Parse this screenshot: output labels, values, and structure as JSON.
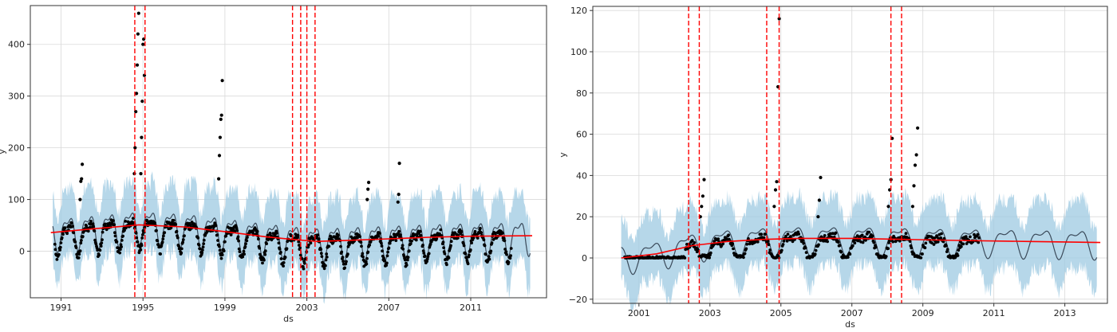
{
  "chart_data": [
    {
      "type": "scatter",
      "title": "",
      "xlabel": "ds",
      "ylabel": "y",
      "xlim": [
        1989.5,
        2014.7
      ],
      "ylim": [
        -90,
        475
      ],
      "xticks": [
        1991,
        1995,
        1999,
        2003,
        2007,
        2011
      ],
      "xtick_labels": [
        "1991",
        "1995",
        "1999",
        "2003",
        "2007",
        "2011"
      ],
      "yticks": [
        0,
        100,
        200,
        300,
        400
      ],
      "ytick_labels": [
        "0",
        "100",
        "200",
        "300",
        "400"
      ],
      "grid": true,
      "data_range": [
        1990.7,
        2013.0
      ],
      "forecast_end": 2013.9,
      "trend": [
        [
          1990.5,
          36
        ],
        [
          1992.5,
          43
        ],
        [
          1994.8,
          51
        ],
        [
          1997.0,
          47
        ],
        [
          1999.0,
          38
        ],
        [
          2001.0,
          28
        ],
        [
          2002.5,
          22
        ],
        [
          2003.5,
          19
        ],
        [
          2005.0,
          21
        ],
        [
          2007.0,
          24
        ],
        [
          2009.0,
          27
        ],
        [
          2011.0,
          29
        ],
        [
          2014.0,
          30
        ]
      ],
      "seasonal_amplitude": 28,
      "uncertainty_halfwidth": 66,
      "changepoints": [
        1994.6,
        1995.1,
        2002.3,
        2002.7,
        2003.0,
        2003.4
      ],
      "peaks": [
        {
          "x": 1992.0,
          "v": [
            100,
            135,
            140,
            168
          ]
        },
        {
          "x": 1994.7,
          "v": [
            150,
            200,
            270,
            305,
            360,
            420,
            460
          ]
        },
        {
          "x": 1995.0,
          "v": [
            150,
            220,
            290,
            400,
            410,
            340
          ]
        },
        {
          "x": 1998.8,
          "v": [
            140,
            185,
            220,
            255,
            263,
            330
          ]
        },
        {
          "x": 2006.0,
          "v": [
            100,
            120,
            133
          ]
        },
        {
          "x": 2007.5,
          "v": [
            95,
            110,
            170
          ]
        }
      ],
      "colors": {
        "points": "#000000",
        "forecast": "#0072B2",
        "band": "#9ecae1",
        "trend": "#ff0000",
        "changepoint": "#ff0000",
        "grid": "#d9d9d9"
      }
    },
    {
      "type": "scatter",
      "title": "",
      "xlabel": "ds",
      "ylabel": "y",
      "xlim": [
        1999.7,
        2014.2
      ],
      "ylim": [
        -22,
        122
      ],
      "xticks": [
        2001,
        2003,
        2005,
        2007,
        2009,
        2011,
        2013
      ],
      "xtick_labels": [
        "2001",
        "2003",
        "2005",
        "2007",
        "2009",
        "2011",
        "2013"
      ],
      "yticks": [
        -20,
        0,
        20,
        40,
        60,
        80,
        100,
        120
      ],
      "ytick_labels": [
        "−20",
        "0",
        "20",
        "40",
        "60",
        "80",
        "100",
        "120"
      ],
      "grid": true,
      "data_range": [
        2000.6,
        2010.6
      ],
      "forecast_end": 2013.9,
      "trend": [
        [
          2000.5,
          0
        ],
        [
          2001.5,
          2
        ],
        [
          2002.5,
          6
        ],
        [
          2003.5,
          8
        ],
        [
          2004.5,
          9
        ],
        [
          2005.5,
          9.5
        ],
        [
          2007.0,
          9.5
        ],
        [
          2008.5,
          9
        ],
        [
          2010.0,
          8.5
        ],
        [
          2012.0,
          8
        ],
        [
          2014.0,
          7.5
        ]
      ],
      "seasonal_amplitude": 6,
      "uncertainty_halfwidth": 16,
      "changepoints": [
        2002.4,
        2002.7,
        2004.6,
        2004.95,
        2008.1,
        2008.4
      ],
      "peaks": [
        {
          "x": 2002.8,
          "v": [
            20,
            25,
            30,
            38
          ]
        },
        {
          "x": 2004.9,
          "v": [
            25,
            33,
            37,
            83,
            116
          ]
        },
        {
          "x": 2006.1,
          "v": [
            20,
            28,
            39
          ]
        },
        {
          "x": 2008.1,
          "v": [
            25,
            33,
            38,
            58
          ]
        },
        {
          "x": 2008.8,
          "v": [
            25,
            35,
            45,
            50,
            63
          ]
        }
      ],
      "colors": {
        "points": "#000000",
        "forecast": "#0072B2",
        "band": "#9ecae1",
        "trend": "#ff0000",
        "changepoint": "#ff0000",
        "grid": "#d9d9d9"
      }
    }
  ]
}
